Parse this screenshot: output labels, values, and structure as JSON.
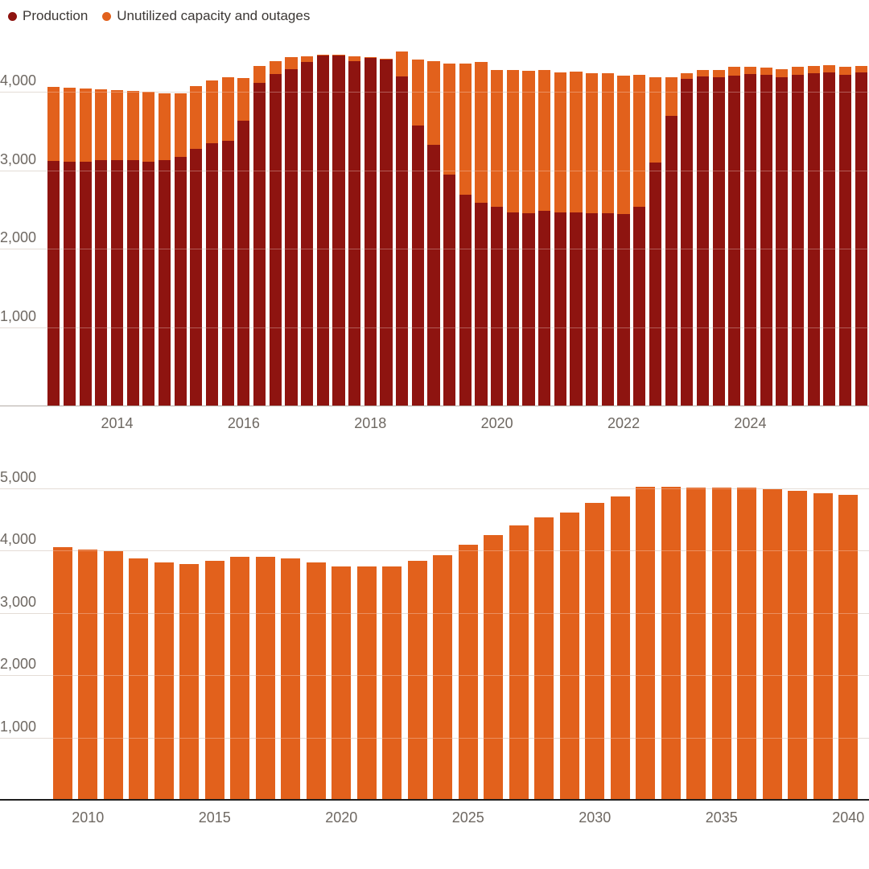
{
  "page": {
    "background": "#ffffff"
  },
  "legend": {
    "items": [
      {
        "label": "Production",
        "color": "#8e1410"
      },
      {
        "label": "Unutilized capacity and outages",
        "color": "#e2611c"
      }
    ]
  },
  "chart_data": [
    {
      "id": "quarterly",
      "type": "bar",
      "subtype": "stacked",
      "title": "",
      "grid": true,
      "legend_position": "top-left",
      "ylim": [
        0,
        4650
      ],
      "yticks": [
        {
          "value": 1000,
          "label": "1,000"
        },
        {
          "value": 2000,
          "label": "2,000"
        },
        {
          "value": 3000,
          "label": "3,000"
        },
        {
          "value": 4000,
          "label": "4,000"
        }
      ],
      "categories": [
        "2013 Q1",
        "2013 Q2",
        "2013 Q3",
        "2013 Q4",
        "2014 Q1",
        "2014 Q2",
        "2014 Q3",
        "2014 Q4",
        "2015 Q1",
        "2015 Q2",
        "2015 Q3",
        "2015 Q4",
        "2016 Q1",
        "2016 Q2",
        "2016 Q3",
        "2016 Q4",
        "2017 Q1",
        "2017 Q2",
        "2017 Q3",
        "2017 Q4",
        "2018 Q1",
        "2018 Q2",
        "2018 Q3",
        "2018 Q4",
        "2019 Q1",
        "2019 Q2",
        "2019 Q3",
        "2019 Q4",
        "2020 Q1",
        "2020 Q2",
        "2020 Q3",
        "2020 Q4",
        "2021 Q1",
        "2021 Q2",
        "2021 Q3",
        "2021 Q4",
        "2022 Q1",
        "2022 Q2",
        "2022 Q3",
        "2022 Q4",
        "2023 Q1",
        "2023 Q2",
        "2023 Q3",
        "2023 Q4",
        "2024 Q1",
        "2024 Q2",
        "2024 Q3",
        "2024 Q4",
        "2025 Q1",
        "2025 Q2",
        "2025 Q3",
        "2025 Q4"
      ],
      "x_ticks": [
        {
          "label": "2014",
          "category_index": 4
        },
        {
          "label": "2016",
          "category_index": 12
        },
        {
          "label": "2018",
          "category_index": 20
        },
        {
          "label": "2020",
          "category_index": 28
        },
        {
          "label": "2022",
          "category_index": 36
        },
        {
          "label": "2024",
          "category_index": 44
        }
      ],
      "series": [
        {
          "name": "Production",
          "color": "#8e1410",
          "values": [
            3130,
            3120,
            3120,
            3140,
            3140,
            3140,
            3120,
            3135,
            3175,
            3280,
            3350,
            3385,
            3645,
            4125,
            4235,
            4300,
            4395,
            4470,
            4475,
            4400,
            4440,
            4430,
            4210,
            3580,
            3335,
            2955,
            2700,
            2600,
            2540,
            2470,
            2460,
            2490,
            2470,
            2475,
            2460,
            2465,
            2450,
            2540,
            3110,
            3700,
            4175,
            4210,
            4190,
            4215,
            4240,
            4230,
            4200,
            4230,
            4250,
            4260,
            4230,
            4260
          ]
        },
        {
          "name": "Unutilized capacity and outages",
          "color": "#e2611c",
          "values": [
            945,
            940,
            930,
            900,
            890,
            885,
            890,
            850,
            815,
            805,
            805,
            815,
            535,
            210,
            170,
            155,
            65,
            10,
            5,
            65,
            10,
            5,
            315,
            840,
            1065,
            1415,
            1670,
            1790,
            1745,
            1815,
            1815,
            1795,
            1785,
            1790,
            1785,
            1780,
            1770,
            1690,
            1085,
            490,
            75,
            75,
            95,
            110,
            90,
            90,
            100,
            100,
            90,
            90,
            100,
            80
          ]
        }
      ]
    },
    {
      "id": "annual",
      "type": "bar",
      "subtype": "simple",
      "title": "",
      "grid": true,
      "ylim": [
        0,
        5250
      ],
      "yticks": [
        {
          "value": 1000,
          "label": "1,000"
        },
        {
          "value": 2000,
          "label": "2,000"
        },
        {
          "value": 3000,
          "label": "3,000"
        },
        {
          "value": 4000,
          "label": "4,000"
        },
        {
          "value": 5000,
          "label": "5,000"
        }
      ],
      "categories": [
        "2009",
        "2010",
        "2011",
        "2012",
        "2013",
        "2014",
        "2015",
        "2016",
        "2017",
        "2018",
        "2019",
        "2020",
        "2021",
        "2022",
        "2023",
        "2024",
        "2025",
        "2026",
        "2027",
        "2028",
        "2029",
        "2030",
        "2031",
        "2032",
        "2033",
        "2034",
        "2035",
        "2036",
        "2037",
        "2038",
        "2039",
        "2040"
      ],
      "x_ticks": [
        {
          "label": "2010",
          "category_index": 1
        },
        {
          "label": "2015",
          "category_index": 6
        },
        {
          "label": "2020",
          "category_index": 11
        },
        {
          "label": "2025",
          "category_index": 16
        },
        {
          "label": "2030",
          "category_index": 21
        },
        {
          "label": "2035",
          "category_index": 26
        },
        {
          "label": "2040",
          "category_index": 31
        }
      ],
      "series": [
        {
          "name": "",
          "color": "#e2611c",
          "values": [
            4065,
            4035,
            4000,
            3890,
            3830,
            3805,
            3850,
            3915,
            3920,
            3890,
            3825,
            3765,
            3765,
            3765,
            3855,
            3945,
            4115,
            4270,
            4415,
            4545,
            4620,
            4780,
            4880,
            5040,
            5040,
            5020,
            5020,
            5020,
            4995,
            4975,
            4930,
            4910
          ]
        }
      ]
    }
  ]
}
